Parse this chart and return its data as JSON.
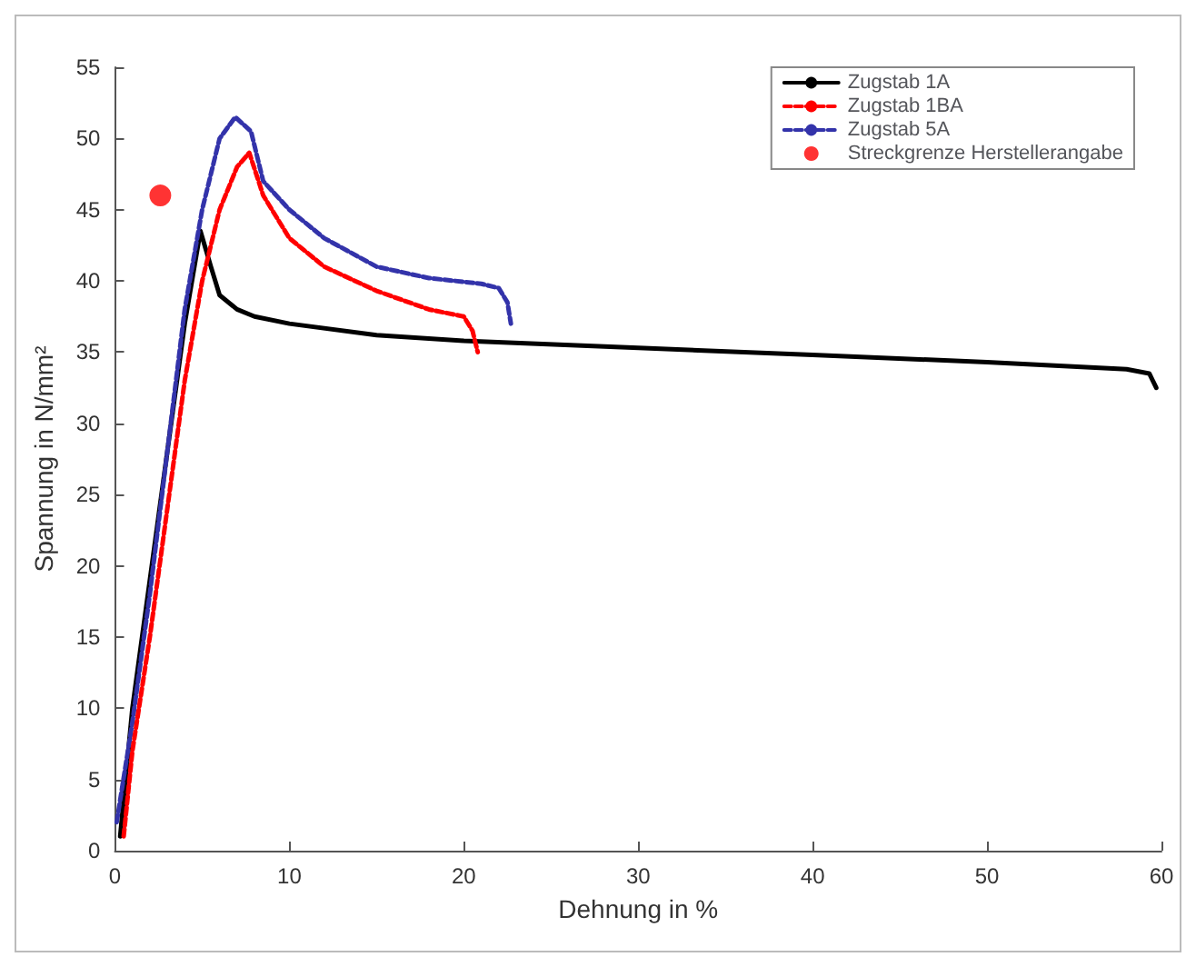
{
  "chart_data": {
    "type": "line",
    "xlabel": "Dehnung in %",
    "ylabel": "Spannung in N/mm²",
    "xlim": [
      0,
      60
    ],
    "ylim": [
      0,
      55
    ],
    "xticks": [
      0,
      10,
      20,
      30,
      40,
      50,
      60
    ],
    "yticks": [
      0,
      5,
      10,
      15,
      20,
      25,
      30,
      35,
      40,
      45,
      50,
      55
    ],
    "grid": false,
    "legend": "top right",
    "marker": "none",
    "series": [
      {
        "name": "Zugstab 1A",
        "color": "#000000",
        "line_style": "solid",
        "x": [
          0.3,
          1,
          2,
          3,
          4,
          4.9,
          5.5,
          6,
          7,
          8,
          10,
          15,
          20,
          30,
          40,
          50,
          58,
          59.3,
          59.7
        ],
        "values": [
          1,
          10,
          19,
          28,
          37,
          43.5,
          41,
          39,
          38,
          37.5,
          37,
          36.2,
          35.8,
          35.3,
          34.8,
          34.3,
          33.8,
          33.5,
          32.5
        ]
      },
      {
        "name": "Zugstab 1BA",
        "color": "#ff0000",
        "line_style": "dashed",
        "x": [
          0.5,
          1,
          2,
          3,
          4,
          5,
          6,
          7,
          7.7,
          8.5,
          10,
          12,
          15,
          18,
          20,
          20.5,
          20.8
        ],
        "values": [
          1,
          7,
          15,
          24,
          33,
          40,
          45,
          48,
          49,
          46,
          43,
          41,
          39.3,
          38,
          37.5,
          36.5,
          35
        ]
      },
      {
        "name": "Zugstab 5A",
        "color": "#3333aa",
        "line_style": "dashed",
        "x": [
          0.1,
          1,
          2,
          3,
          4,
          5,
          6,
          6.9,
          7.8,
          8.5,
          10,
          12,
          15,
          18,
          21,
          22,
          22.5,
          22.7
        ],
        "values": [
          2,
          9,
          18,
          28,
          38,
          45,
          50,
          51.5,
          50.5,
          47,
          45,
          43,
          41,
          40.2,
          39.8,
          39.5,
          38.5,
          37
        ]
      },
      {
        "name": "Streckgrenze Herstellerangabe",
        "type": "scatter",
        "color": "#ff0000",
        "marker": "circle",
        "x": [
          2.6
        ],
        "values": [
          46
        ]
      }
    ]
  }
}
